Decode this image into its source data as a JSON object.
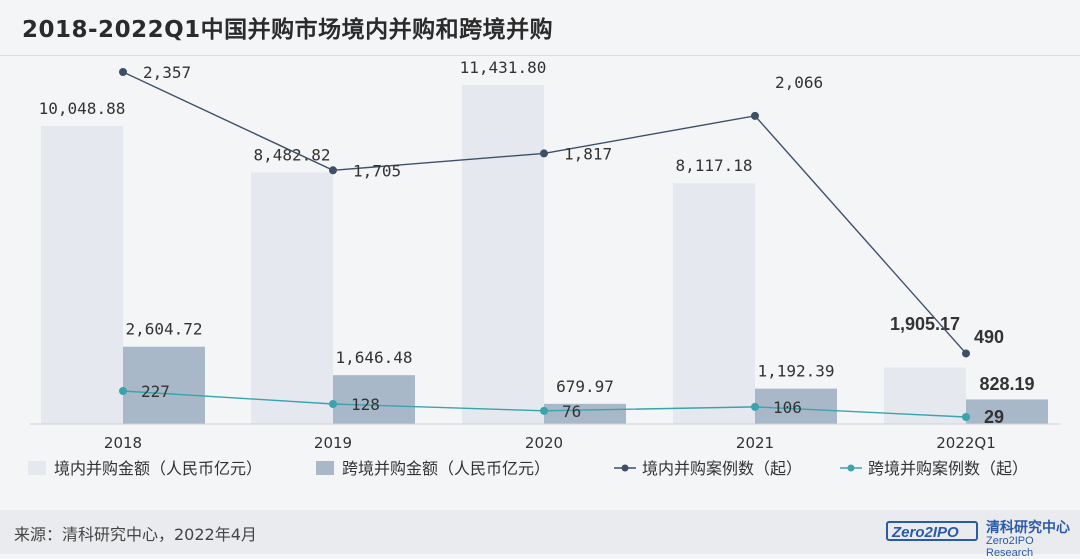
{
  "title": "2018-2022Q1中国并购市场境内并购和跨境并购",
  "source": "来源：清科研究中心，2022年4月",
  "logo": {
    "text": "Zero2IPO",
    "name_cn": "清科研究中心",
    "name_en": "Zero2IPO Research"
  },
  "colors": {
    "domestic_bar": "#e6e8ef",
    "cross_bar": "#a9b8c8",
    "domestic_line": "#3d5068",
    "cross_line": "#3aa3ad"
  },
  "chart_data": {
    "type": "bar",
    "categories": [
      "2018",
      "2019",
      "2020",
      "2021",
      "2022Q1"
    ],
    "series": [
      {
        "name": "境内并购金额（人民币亿元）",
        "type": "bar",
        "values": [
          10048.88,
          8482.82,
          11431.8,
          8117.18,
          1905.17
        ],
        "labels": [
          "10,048.88",
          "8,482.82",
          "11,431.80",
          "8,117.18",
          "1,905.17"
        ]
      },
      {
        "name": "跨境并购金额（人民币亿元）",
        "type": "bar",
        "values": [
          2604.72,
          1646.48,
          679.97,
          1192.39,
          828.19
        ],
        "labels": [
          "2,604.72",
          "1,646.48",
          "679.97",
          "1,192.39",
          "828.19"
        ]
      },
      {
        "name": "境内并购案例数（起）",
        "type": "line",
        "values": [
          2357,
          1705,
          1817,
          2066,
          490
        ],
        "labels": [
          "2,357",
          "1,705",
          "1,817",
          "2,066",
          "490"
        ]
      },
      {
        "name": "跨境并购案例数（起）",
        "type": "line",
        "values": [
          227,
          128,
          76,
          106,
          29
        ],
        "labels": [
          "227",
          "128",
          "76",
          "106",
          "29"
        ]
      }
    ],
    "legend_position": "bottom",
    "grid": false
  }
}
